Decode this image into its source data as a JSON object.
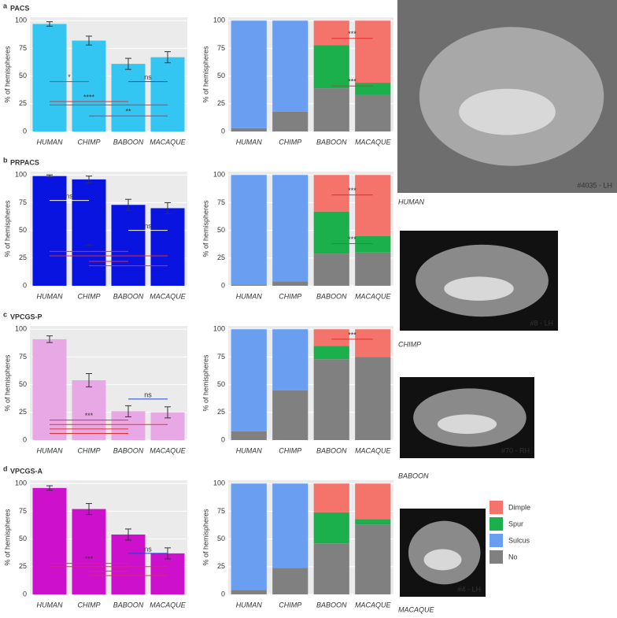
{
  "chart_data": [
    {
      "type": "bar",
      "panel": "a",
      "title": "PACS",
      "ylabel": "% of hemispheres",
      "categories": [
        "HUMAN",
        "CHIMP",
        "BABOON",
        "MACAQUE"
      ],
      "values": [
        97,
        82,
        61,
        67
      ],
      "errors": [
        2,
        4,
        5,
        5
      ],
      "color": "#33c6f2",
      "ylim": [
        0,
        103
      ],
      "yticks": [
        0,
        25,
        50,
        75,
        100
      ],
      "grid": true,
      "annotations": [
        {
          "text": "*",
          "y": 45,
          "from": "HUMAN",
          "to": "CHIMP",
          "color": "#e03030"
        },
        {
          "text": "ns",
          "y": 45,
          "from": "BABOON",
          "to": "MACAQUE",
          "color": "#2040e0"
        },
        {
          "text": "****",
          "y": 27,
          "from": "HUMAN",
          "to": "BABOON",
          "color": "#e03030"
        },
        {
          "y": 24,
          "from": "HUMAN",
          "to": "MACAQUE",
          "color": "#e03030"
        },
        {
          "text": "**",
          "y": 14,
          "from": "CHIMP",
          "to": "MACAQUE",
          "color": "#e03030"
        }
      ]
    },
    {
      "type": "stacked_bar",
      "ylabel": "% of hemispheres",
      "categories": [
        "HUMAN",
        "CHIMP",
        "BABOON",
        "MACAQUE"
      ],
      "series": [
        {
          "name": "No",
          "color": "#808080",
          "values": [
            3,
            18,
            39,
            33
          ]
        },
        {
          "name": "Sulcus",
          "color": "#6a9ef0",
          "values": [
            97,
            82,
            0,
            0
          ]
        },
        {
          "name": "Spur",
          "color": "#1cb04c",
          "values": [
            0,
            0,
            39,
            11
          ]
        },
        {
          "name": "Dimple",
          "color": "#f4736b",
          "values": [
            0,
            0,
            22,
            56
          ]
        }
      ],
      "ylim": [
        0,
        103
      ],
      "yticks": [
        0,
        25,
        50,
        75,
        100
      ],
      "grid": true,
      "annotations": [
        {
          "text": "***",
          "y": 84,
          "from": "BABOON",
          "to": "MACAQUE",
          "color": "#e03030"
        },
        {
          "text": "***",
          "y": 41,
          "from": "BABOON",
          "to": "MACAQUE",
          "color": "#e03030"
        }
      ]
    },
    {
      "type": "bar",
      "panel": "b",
      "title": "PRPACS",
      "ylabel": "% of hemispheres",
      "categories": [
        "HUMAN",
        "CHIMP",
        "BABOON",
        "MACAQUE"
      ],
      "values": [
        99,
        96,
        73,
        70
      ],
      "errors": [
        1,
        3,
        5,
        5
      ],
      "color": "#0a14e0",
      "ylim": [
        0,
        103
      ],
      "yticks": [
        0,
        25,
        50,
        75,
        100
      ],
      "grid": true,
      "annotations": [
        {
          "text": "ns",
          "y": 77,
          "from": "HUMAN",
          "to": "CHIMP",
          "color": "#ffffff"
        },
        {
          "text": "ns",
          "y": 50,
          "from": "BABOON",
          "to": "MACAQUE",
          "color": "#ffffff"
        },
        {
          "text": "***",
          "y": 31,
          "from": "HUMAN",
          "to": "BABOON",
          "color": "#e03030"
        },
        {
          "y": 27,
          "from": "HUMAN",
          "to": "MACAQUE",
          "color": "#e03030"
        },
        {
          "y": 22,
          "from": "CHIMP",
          "to": "BABOON",
          "color": "#e03030"
        },
        {
          "y": 18,
          "from": "CHIMP",
          "to": "MACAQUE",
          "color": "#e03030"
        }
      ]
    },
    {
      "type": "stacked_bar",
      "ylabel": "% of hemispheres",
      "categories": [
        "HUMAN",
        "CHIMP",
        "BABOON",
        "MACAQUE"
      ],
      "series": [
        {
          "name": "No",
          "color": "#808080",
          "values": [
            1,
            4,
            29,
            30
          ]
        },
        {
          "name": "Sulcus",
          "color": "#6a9ef0",
          "values": [
            99,
            96,
            0,
            0
          ]
        },
        {
          "name": "Spur",
          "color": "#1cb04c",
          "values": [
            0,
            0,
            38,
            15
          ]
        },
        {
          "name": "Dimple",
          "color": "#f4736b",
          "values": [
            0,
            0,
            33,
            55
          ]
        }
      ],
      "ylim": [
        0,
        103
      ],
      "yticks": [
        0,
        25,
        50,
        75,
        100
      ],
      "grid": true,
      "annotations": [
        {
          "text": "***",
          "y": 82,
          "from": "BABOON",
          "to": "MACAQUE",
          "color": "#e03030"
        },
        {
          "text": "***",
          "y": 38,
          "from": "BABOON",
          "to": "MACAQUE",
          "color": "#e03030"
        }
      ]
    },
    {
      "type": "bar",
      "panel": "c",
      "title": "VPCGS-P",
      "ylabel": "% of hemispheres",
      "categories": [
        "HUMAN",
        "CHIMP",
        "BABOON",
        "MACAQUE"
      ],
      "values": [
        91,
        54,
        26,
        25
      ],
      "errors": [
        3,
        6,
        5,
        5
      ],
      "color": "#e8a8e6",
      "ylim": [
        0,
        103
      ],
      "yticks": [
        0,
        25,
        50,
        75,
        100
      ],
      "grid": true,
      "annotations": [
        {
          "text": "ns",
          "y": 37,
          "from": "BABOON",
          "to": "MACAQUE",
          "color": "#2040e0"
        },
        {
          "text": "***",
          "y": 18,
          "from": "HUMAN",
          "to": "BABOON",
          "color": "#e03030"
        },
        {
          "y": 14,
          "from": "HUMAN",
          "to": "MACAQUE",
          "color": "#e03030"
        },
        {
          "y": 10,
          "from": "HUMAN",
          "to": "BABOON",
          "color": "#e03030"
        },
        {
          "y": 6,
          "from": "HUMAN",
          "to": "BABOON",
          "color": "#e03030"
        }
      ]
    },
    {
      "type": "stacked_bar",
      "ylabel": "% of hemispheres",
      "categories": [
        "HUMAN",
        "CHIMP",
        "BABOON",
        "MACAQUE"
      ],
      "series": [
        {
          "name": "No",
          "color": "#808080",
          "values": [
            8,
            45,
            73,
            75
          ]
        },
        {
          "name": "Sulcus",
          "color": "#6a9ef0",
          "values": [
            92,
            55,
            0,
            0
          ]
        },
        {
          "name": "Spur",
          "color": "#1cb04c",
          "values": [
            0,
            0,
            12,
            0
          ]
        },
        {
          "name": "Dimple",
          "color": "#f4736b",
          "values": [
            0,
            0,
            15,
            25
          ]
        }
      ],
      "ylim": [
        0,
        103
      ],
      "yticks": [
        0,
        25,
        50,
        75,
        100
      ],
      "grid": true,
      "annotations": [
        {
          "text": "***",
          "y": 91,
          "from": "BABOON",
          "to": "MACAQUE",
          "color": "#e03030"
        }
      ]
    },
    {
      "type": "bar",
      "panel": "d",
      "title": "VPCGS-A",
      "ylabel": "% of hemispheres",
      "categories": [
        "HUMAN",
        "CHIMP",
        "BABOON",
        "MACAQUE"
      ],
      "values": [
        96,
        77,
        54,
        37
      ],
      "errors": [
        2,
        5,
        5,
        5
      ],
      "color": "#cc10cc",
      "ylim": [
        0,
        103
      ],
      "yticks": [
        0,
        25,
        50,
        75,
        100
      ],
      "grid": true,
      "annotations": [
        {
          "text": "ns",
          "y": 37,
          "from": "BABOON",
          "to": "MACAQUE",
          "color": "#2040e0"
        },
        {
          "text": "***",
          "y": 28,
          "from": "HUMAN",
          "to": "BABOON",
          "color": "#e03030"
        },
        {
          "y": 25,
          "from": "HUMAN",
          "to": "MACAQUE",
          "color": "#e03030"
        },
        {
          "y": 21,
          "from": "CHIMP",
          "to": "BABOON",
          "color": "#e03030"
        },
        {
          "y": 17,
          "from": "CHIMP",
          "to": "MACAQUE",
          "color": "#e03030"
        }
      ]
    },
    {
      "type": "stacked_bar",
      "ylabel": "% of hemispheres",
      "categories": [
        "HUMAN",
        "CHIMP",
        "BABOON",
        "MACAQUE"
      ],
      "series": [
        {
          "name": "No",
          "color": "#808080",
          "values": [
            4,
            24,
            46,
            63
          ]
        },
        {
          "name": "Sulcus",
          "color": "#6a9ef0",
          "values": [
            96,
            76,
            0,
            0
          ]
        },
        {
          "name": "Spur",
          "color": "#1cb04c",
          "values": [
            0,
            0,
            28,
            5
          ]
        },
        {
          "name": "Dimple",
          "color": "#f4736b",
          "values": [
            0,
            0,
            26,
            32
          ]
        }
      ],
      "ylim": [
        0,
        103
      ],
      "yticks": [
        0,
        25,
        50,
        75,
        100
      ],
      "grid": true,
      "legend": "right"
    }
  ],
  "images": [
    {
      "label": "HUMAN",
      "caption": "#4035 - LH"
    },
    {
      "label": "CHIMP",
      "caption": "#8 - LH"
    },
    {
      "label": "BABOON",
      "caption": "#70 - RH"
    },
    {
      "label": "MACAQUE",
      "caption": "#4 - LH"
    }
  ]
}
